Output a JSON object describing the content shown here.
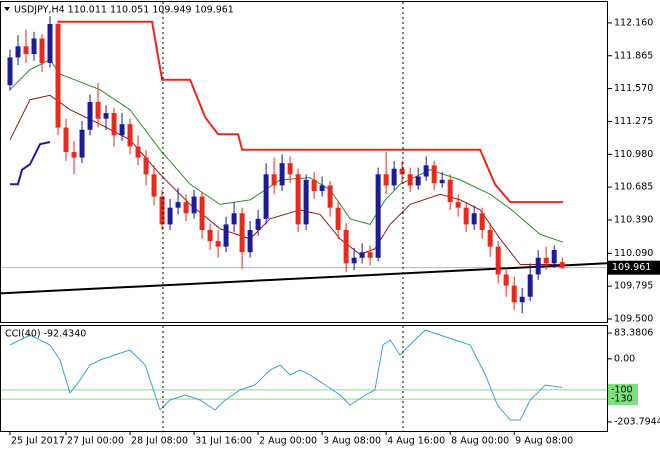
{
  "chart_data": [
    {
      "type": "candlestick",
      "title": "USDJPY,H4  110.011 110.051 109.949 109.961",
      "xlim": [
        -1.25,
        74.6
      ],
      "xticks": [
        {
          "value": 0,
          "label": "25 Jul 2017"
        },
        {
          "value": 7,
          "label": "27 Jul 00:00"
        },
        {
          "value": 15,
          "label": "28 Jul 08:00"
        },
        {
          "value": 23,
          "label": "31 Jul 16:00"
        },
        {
          "value": 31,
          "label": "2 Aug 00:00"
        },
        {
          "value": 39,
          "label": "3 Aug 08:00"
        },
        {
          "value": 47,
          "label": "4 Aug 16:00"
        },
        {
          "value": 55,
          "label": "8 Aug 00:00"
        },
        {
          "value": 63,
          "label": "9 Aug 08:00"
        }
      ],
      "ylim": [
        109.473,
        112.348
      ],
      "yticks": [
        {
          "value": 112.16,
          "label": "112.160"
        },
        111.865,
        {
          "value": 111.57,
          "label": "111.570"
        },
        111.275,
        {
          "value": 110.98,
          "label": "110.980"
        },
        110.685,
        {
          "value": 110.39,
          "label": "110.390"
        },
        {
          "value": 110.09,
          "label": "110.090"
        },
        109.795,
        {
          "value": 109.5,
          "label": "109.500"
        }
      ],
      "open": [
        111.6,
        111.85,
        111.95,
        111.88,
        112.02,
        111.8,
        112.15,
        111.22,
        111.0,
        110.95,
        111.2,
        111.45,
        111.3,
        111.35,
        111.15,
        111.25,
        111.05,
        110.95,
        110.8,
        110.6,
        110.35,
        110.5,
        110.55,
        110.45,
        110.6,
        110.3,
        110.2,
        110.15,
        110.35,
        110.45,
        110.1,
        110.3,
        110.4,
        110.8,
        110.7,
        110.9,
        110.8,
        110.35,
        110.75,
        110.65,
        110.7,
        110.5,
        110.3,
        110.0,
        110.05,
        110.1,
        110.05,
        110.8,
        110.7,
        110.85,
        110.8,
        110.7,
        110.78,
        110.88,
        110.72,
        110.75,
        110.55,
        110.5,
        110.35,
        110.45,
        110.3,
        110.15,
        109.9,
        109.8,
        109.65,
        109.7,
        109.9,
        110.05,
        110.0,
        110.011
      ],
      "high": [
        111.92,
        112.05,
        112.1,
        112.08,
        112.06,
        112.22,
        112.18,
        111.3,
        111.1,
        111.28,
        111.52,
        111.62,
        111.42,
        111.4,
        111.35,
        111.3,
        111.15,
        111.02,
        110.88,
        110.66,
        110.58,
        110.68,
        110.62,
        110.66,
        110.64,
        110.36,
        110.3,
        110.42,
        110.55,
        110.5,
        110.38,
        110.48,
        110.9,
        110.95,
        110.98,
        110.96,
        110.85,
        110.8,
        110.82,
        110.78,
        110.74,
        110.55,
        110.36,
        110.14,
        110.18,
        110.16,
        110.86,
        111.0,
        110.92,
        110.92,
        110.86,
        110.86,
        110.96,
        110.92,
        110.82,
        110.8,
        110.62,
        110.55,
        110.52,
        110.5,
        110.36,
        110.2,
        109.96,
        109.88,
        109.78,
        110.0,
        110.12,
        110.15,
        110.16,
        110.051
      ],
      "low": [
        111.55,
        111.78,
        111.8,
        111.82,
        111.72,
        111.76,
        111.15,
        110.92,
        110.8,
        110.9,
        111.15,
        111.22,
        111.2,
        111.05,
        111.1,
        110.98,
        110.88,
        110.7,
        110.52,
        110.3,
        110.3,
        110.44,
        110.38,
        110.4,
        110.22,
        110.12,
        110.05,
        110.1,
        110.28,
        109.95,
        110.05,
        110.25,
        110.35,
        110.62,
        110.65,
        110.72,
        110.28,
        110.3,
        110.58,
        110.6,
        110.42,
        110.22,
        109.92,
        109.94,
        110.0,
        109.98,
        110.02,
        110.62,
        110.66,
        110.72,
        110.64,
        110.66,
        110.74,
        110.66,
        110.68,
        110.48,
        110.42,
        110.28,
        110.3,
        110.22,
        110.06,
        109.82,
        109.7,
        109.58,
        109.55,
        109.66,
        109.85,
        109.94,
        109.96,
        109.949
      ],
      "close": [
        111.85,
        111.95,
        111.88,
        112.02,
        111.8,
        112.15,
        111.22,
        111.0,
        110.95,
        111.2,
        111.45,
        111.3,
        111.35,
        111.15,
        111.25,
        111.05,
        110.95,
        110.8,
        110.6,
        110.35,
        110.5,
        110.55,
        110.45,
        110.6,
        110.3,
        110.2,
        110.15,
        110.35,
        110.45,
        110.1,
        110.3,
        110.4,
        110.8,
        110.7,
        110.9,
        110.8,
        110.35,
        110.75,
        110.65,
        110.7,
        110.5,
        110.3,
        110.0,
        110.05,
        110.1,
        110.05,
        110.8,
        110.7,
        110.85,
        110.8,
        110.7,
        110.78,
        110.88,
        110.72,
        110.75,
        110.55,
        110.5,
        110.35,
        110.45,
        110.3,
        110.15,
        109.9,
        109.8,
        109.65,
        109.7,
        109.9,
        110.05,
        110.0,
        110.12,
        109.961
      ],
      "up_color": "#1c1c9a",
      "down_color": "#e8291c",
      "lines": [
        {
          "color": "#2e8b2e",
          "width": 1,
          "x": [
            0,
            2.5,
            5,
            6.25,
            11.25,
            15,
            18.75,
            22.5,
            26.25,
            30,
            33.75,
            37.5,
            40,
            42.5,
            45,
            46.9,
            48.75,
            52.5,
            56.25,
            60,
            62.5,
            66.25,
            69.1
          ],
          "values": [
            111.56,
            111.74,
            111.83,
            111.7,
            111.56,
            111.38,
            111.02,
            110.71,
            110.53,
            110.57,
            110.75,
            110.77,
            110.66,
            110.4,
            110.35,
            110.57,
            110.71,
            110.84,
            110.75,
            110.62,
            110.49,
            110.26,
            110.19
          ]
        },
        {
          "color": "#8b1a1a",
          "width": 1,
          "x": [
            0,
            2.5,
            5,
            7.5,
            11.25,
            15,
            18.75,
            22.5,
            26.25,
            30,
            32.5,
            36.25,
            38.75,
            41.25,
            43.75,
            45.6,
            47.5,
            50,
            53.75,
            56.25,
            58.75,
            61.25,
            63.75,
            66.25,
            69.1
          ],
          "values": [
            111.11,
            111.47,
            111.51,
            111.38,
            111.25,
            111.11,
            110.8,
            110.53,
            110.31,
            110.22,
            110.4,
            110.48,
            110.44,
            110.22,
            110.08,
            110.13,
            110.35,
            110.53,
            110.62,
            110.57,
            110.48,
            110.22,
            109.99,
            109.99,
            109.99
          ]
        },
        {
          "color": "#1c1c9a",
          "width": 2,
          "x": [
            0,
            1,
            1.5,
            2.5,
            3.75,
            5
          ],
          "values": [
            110.71,
            110.71,
            110.84,
            110.89,
            111.07,
            111.09
          ]
        },
        {
          "color": "#e8291c",
          "width": 2,
          "x": [
            6,
            17.75,
            19,
            22.5,
            24.4,
            26,
            28.5,
            29,
            58.75,
            60.6,
            62.5,
            69.1
          ],
          "values": [
            112.17,
            112.17,
            111.65,
            111.65,
            111.31,
            111.16,
            111.16,
            111.02,
            111.02,
            110.71,
            110.55,
            110.55
          ]
        },
        {
          "color": "#000000",
          "width": 2,
          "x": [
            -1.25,
            74.6
          ],
          "values": [
            109.73,
            110.0
          ]
        }
      ],
      "bid": 109.961
    },
    {
      "type": "line",
      "title": "CCI(40) -92.4340",
      "xlim": [
        -1.25,
        74.6
      ],
      "ylim": [
        -232.8,
        105.96
      ],
      "yticks": [
        83.3806,
        {
          "value": 0,
          "label": "0.00"
        },
        -203.7944
      ],
      "levels": [
        {
          "value": -100,
          "label": "-100"
        },
        {
          "value": -130,
          "label": "-130"
        }
      ],
      "level_color": "#7fe07f",
      "color": "#3aa6c8",
      "x": [
        0,
        2.5,
        5,
        6.25,
        7.5,
        8.75,
        10,
        11.25,
        13.1,
        15,
        16.9,
        18.75,
        20,
        21.9,
        23.75,
        25.6,
        26.9,
        28.75,
        30.6,
        32.5,
        33.75,
        35,
        36.25,
        37.5,
        39.4,
        41.25,
        42.5,
        44.4,
        45.6,
        46.6,
        47.5,
        48.75,
        50.6,
        51.9,
        53.75,
        55.6,
        57.5,
        59.4,
        60.9,
        62.5,
        63.75,
        65,
        66.9,
        69
      ],
      "values": [
        44.7,
        76.9,
        44.7,
        -3.7,
        -110.1,
        -68.2,
        -19.8,
        -3.7,
        12.4,
        28.5,
        -19.8,
        -165,
        -132.7,
        -116.6,
        -132.7,
        -165,
        -132.7,
        -100.5,
        -84.4,
        -36,
        -19.8,
        -52.1,
        -36,
        -52.1,
        -84.4,
        -116.6,
        -148.9,
        -116.6,
        -100.5,
        44.7,
        60.8,
        12.4,
        60.8,
        93,
        76.9,
        60.8,
        44.7,
        -52.1,
        -148.9,
        -197.3,
        -197.3,
        -132.7,
        -84.4,
        -92.434
      ]
    }
  ]
}
